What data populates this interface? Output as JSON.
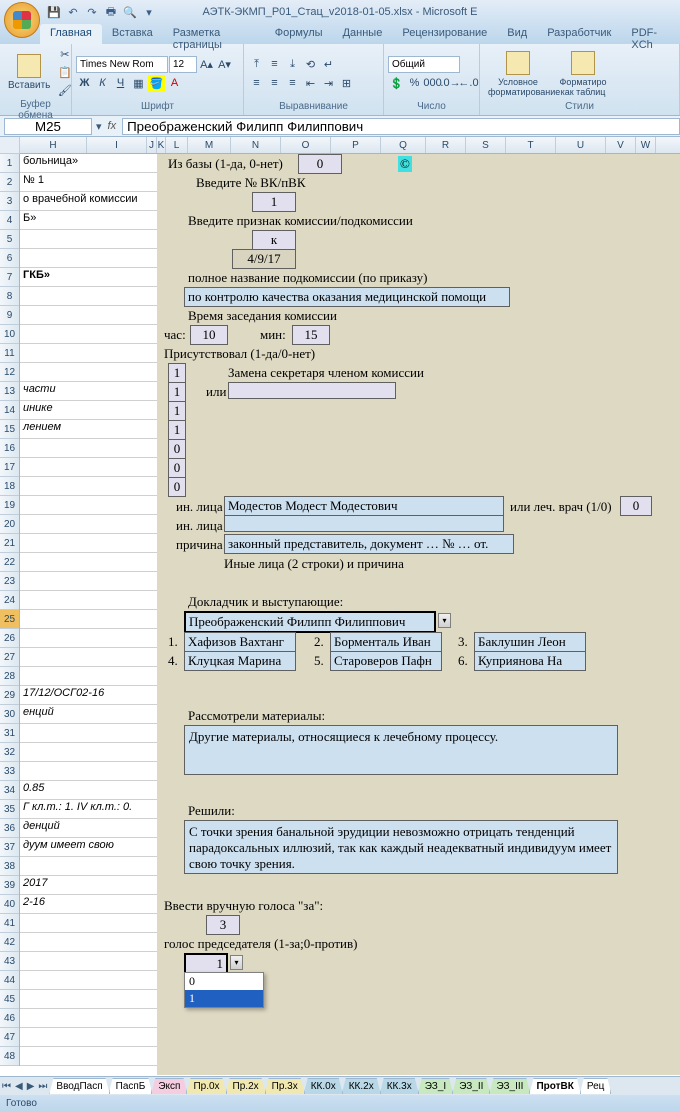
{
  "title": "АЭТК-ЭКМП_Р01_Стац_v2018-01-05.xlsx - Microsoft E",
  "ribbon_tabs": [
    "Главная",
    "Вставка",
    "Разметка страницы",
    "Формулы",
    "Данные",
    "Рецензирование",
    "Вид",
    "Разработчик",
    "PDF-XCh"
  ],
  "active_tab": 0,
  "groups": {
    "clipboard": "Буфер обмена",
    "font": "Шрифт",
    "align": "Выравнивание",
    "number": "Число",
    "styles": "Стили"
  },
  "paste": "Вставить",
  "font": {
    "name": "Times New Rom",
    "size": "12"
  },
  "num_format": "Общий",
  "cond_fmt": "Условное форматирование",
  "as_table": "Форматиро как таблиц",
  "cell_ref": "M25",
  "formula": "Преображенский Филипп Филиппович",
  "cols": [
    [
      "H",
      67
    ],
    [
      "I",
      60
    ],
    [
      "J",
      10
    ],
    [
      "K",
      9
    ],
    [
      "L",
      22
    ],
    [
      "M",
      43
    ],
    [
      "N",
      50
    ],
    [
      "O",
      50
    ],
    [
      "P",
      50
    ],
    [
      "Q",
      45
    ],
    [
      "R",
      40
    ],
    [
      "S",
      40
    ],
    [
      "T",
      50
    ],
    [
      "U",
      50
    ],
    [
      "V",
      30
    ],
    [
      "W",
      20
    ]
  ],
  "rows": 48,
  "sel_row": 25,
  "leftcol": {
    "1": "больница»",
    "2": "№ 1",
    "3": "о врачебной комиссии",
    "4": "Б»",
    "7": "ГКБ»",
    "13": "части",
    "14": "инике",
    "15": "лением",
    "29": "17/12/ОСГ02-16",
    "30": "енций",
    "34": "0.85",
    "35": "Г кл.т.: 1. IV кл.т.: 0.",
    "36": "денций",
    "37": "дуум имеет свою",
    "39": "2017",
    "40": "2-16"
  },
  "leftcol_italic": [
    13,
    14,
    15,
    29,
    30,
    34,
    35,
    36,
    37,
    39,
    40
  ],
  "leftcol_bold": [
    7
  ],
  "cells": {
    "db_lbl": "Из базы (1-да, 0-нет)",
    "db_val": "0",
    "vk_lbl": "Введите № ВК/пВК",
    "vk_val": "1",
    "sign_lbl": "Введите признак комиссии/подкомиссии",
    "sign_val": "к",
    "date_val": "4/9/17",
    "name_lbl": "полное название подкомиссии (по приказу)",
    "name_val": "по контролю качества оказания медицинской помощи",
    "time_lbl": "Время заседания комиссии",
    "hour_lbl": "час:",
    "hour_val": "10",
    "min_lbl": "мин:",
    "min_val": "15",
    "att_lbl": "Присутствовал (1-да/0-нет)",
    "p": [
      1,
      1,
      1,
      1,
      0,
      0,
      0
    ],
    "or": "или",
    "repl_lbl": "Замена секретаря членом комиссии",
    "other_lbl": "ин. лица",
    "other_lbl2": "ин. лица",
    "other_val": "Модестов Модест Модестович",
    "or_doc": "или леч. врач (1/0)",
    "doc_val": "0",
    "reason_lbl": "причина",
    "reason_val": "законный представитель, документ … № … от.",
    "other2": "Иные лица (2 строки) и причина",
    "speak_lbl": "Докладчик и выступающие:",
    "speak_val": "Преображенский Филипп Филиппович",
    "sp": [
      "1.",
      "Хафизов Вахтанг",
      "2.",
      "Борменталь Иван",
      "3.",
      "Баклушин Леон",
      "4.",
      "Клуцкая Марина",
      "5.",
      "Староверов Пафн",
      "6.",
      "Куприянова На"
    ],
    "mat_lbl": "Рассмотрели материалы:",
    "mat_val": "Другие материалы, относящиеся к лечебному процессу.",
    "dec_lbl": "Решили:",
    "dec_val": "С точки зрения банальной эрудиции невозможно отрицать тенденций парадоксальных иллюзий, так как каждый неадекватный индивидуум имеет свою точку зрения.",
    "vote_lbl": "Ввести вручную голоса \"за\":",
    "vote_val": "3",
    "chair_lbl": "голос председателя (1-за;0-против)",
    "chair_val": "1",
    "chair_opts": [
      "0",
      "1"
    ]
  },
  "tabs": [
    [
      "ВводПасп",
      "w"
    ],
    [
      "ПаспБ",
      "w"
    ],
    [
      "Эксп",
      "p"
    ],
    [
      "Пр.0х",
      "y"
    ],
    [
      "Пр.2х",
      "y"
    ],
    [
      "Пр.3х",
      "y"
    ],
    [
      "КК.0х",
      "b"
    ],
    [
      "КК.2х",
      "b"
    ],
    [
      "КК.3х",
      "b"
    ],
    [
      "ЭЗ_I",
      "g"
    ],
    [
      "ЭЗ_II",
      "g"
    ],
    [
      "ЭЗ_III",
      "g"
    ],
    [
      "ПротВК",
      "w"
    ],
    [
      "Рец",
      "w"
    ]
  ],
  "active_sheet": 12,
  "status": "Готово"
}
